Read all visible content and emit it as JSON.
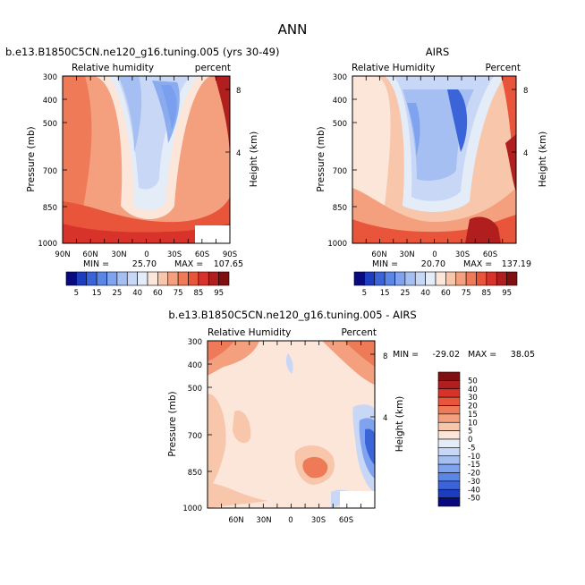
{
  "figure": {
    "title": "ANN",
    "left_panel_title": "b.e13.B1850C5CN.ne120_g16.tuning.005 (yrs 30-49)",
    "right_panel_title": "AIRS",
    "bottom_panel_title": "b.e13.B1850C5CN.ne120_g16.tuning.005 - AIRS"
  },
  "chart_data": [
    {
      "type": "heatmap",
      "id": "model",
      "title": "b.e13.B1850C5CN.ne120_g16.tuning.005 (yrs 30-49)",
      "variable": "Relative humidity",
      "units": "percent",
      "ylabel": "Pressure (mb)",
      "ylabel_right": "Height (km)",
      "x_ticks": [
        "90N",
        "60N",
        "30N",
        "0",
        "30S",
        "60S",
        "90S"
      ],
      "y_ticks": [
        "300",
        "400",
        "500",
        "700",
        "850",
        "1000"
      ],
      "height_ticks": [
        "8",
        "4"
      ],
      "stats": {
        "min_label": "MIN =",
        "min": "25.70",
        "max_label": "MAX =",
        "max": "107.65"
      },
      "contour_levels": [
        5,
        15,
        25,
        40,
        60,
        75,
        85,
        95
      ]
    },
    {
      "type": "heatmap",
      "id": "obs",
      "title": "AIRS",
      "variable": "Relative Humidity",
      "units": "Percent",
      "ylabel": "Pressure (mb)",
      "ylabel_right": "Height (km)",
      "x_ticks": [
        "60N",
        "30N",
        "0",
        "30S",
        "60S"
      ],
      "y_ticks": [
        "300",
        "400",
        "500",
        "700",
        "850",
        "1000"
      ],
      "height_ticks": [
        "8",
        "4"
      ],
      "stats": {
        "min_label": "MIN =",
        "min": "20.70",
        "max_label": "MAX =",
        "max": "137.19"
      },
      "contour_levels": [
        5,
        15,
        25,
        40,
        60,
        75,
        85,
        95
      ]
    },
    {
      "type": "heatmap",
      "id": "diff",
      "title": "b.e13.B1850C5CN.ne120_g16.tuning.005 - AIRS",
      "variable": "Relative Humidity",
      "units": "Percent",
      "ylabel": "Pressure (mb)",
      "ylabel_right": "Height (km)",
      "x_ticks": [
        "60N",
        "30N",
        "0",
        "30S",
        "60S"
      ],
      "y_ticks": [
        "300",
        "400",
        "500",
        "700",
        "850",
        "1000"
      ],
      "height_ticks": [
        "8",
        "4"
      ],
      "stats": {
        "min_label": "MIN =",
        "min": "-29.02",
        "max_label": "MAX =",
        "max": "38.05"
      },
      "contour_levels": [
        50,
        40,
        30,
        20,
        15,
        10,
        5,
        0,
        -5,
        -10,
        -15,
        -20,
        -30,
        -40,
        -50
      ]
    }
  ],
  "colorbar_horizontal": {
    "labels": [
      "5",
      "15",
      "25",
      "40",
      "60",
      "75",
      "85",
      "95"
    ],
    "colors": [
      "#0a0a80",
      "#1c3dbf",
      "#3a64d8",
      "#5a86e6",
      "#7fa3ee",
      "#a5bff2",
      "#c8d7f5",
      "#e4ecf8",
      "#fbe6d9",
      "#f8c6ab",
      "#f4a07e",
      "#ef7a57",
      "#e8553a",
      "#d8332a",
      "#b01e1e",
      "#801010"
    ]
  },
  "colorbar_vertical": {
    "labels": [
      "50",
      "40",
      "30",
      "20",
      "15",
      "10",
      "5",
      "0",
      "-5",
      "-10",
      "-15",
      "-20",
      "-30",
      "-40",
      "-50"
    ],
    "colors": [
      "#801010",
      "#b01e1e",
      "#d8332a",
      "#e8553a",
      "#ef7a57",
      "#f4a07e",
      "#f8c6ab",
      "#fbe6d9",
      "#e4ecf8",
      "#c8d7f5",
      "#a5bff2",
      "#7fa3ee",
      "#5a86e6",
      "#3a64d8",
      "#1c3dbf",
      "#0a0a80"
    ]
  }
}
